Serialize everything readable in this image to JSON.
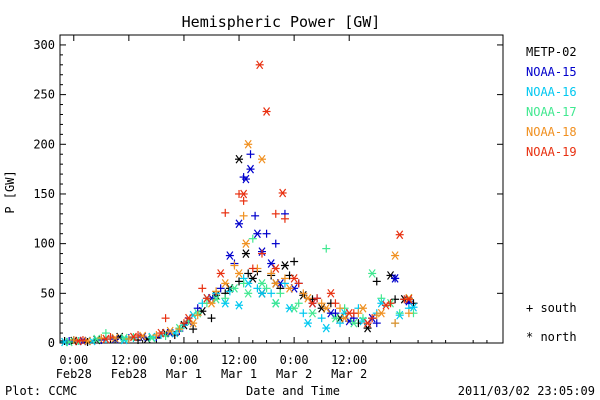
{
  "chart_data": {
    "type": "scatter",
    "title": "Hemispheric Power [GW]",
    "xlabel": "Date and Time",
    "ylabel": "P [GW]",
    "ylim": [
      0,
      310
    ],
    "x_unit": "hours",
    "xlim": [
      -3,
      93.5
    ],
    "x_ticks": [
      {
        "x": 0,
        "line1": "0:00",
        "line2": "Feb28"
      },
      {
        "x": 12,
        "line1": "12:00",
        "line2": "Feb28"
      },
      {
        "x": 24,
        "line1": "0:00",
        "line2": "Mar 1"
      },
      {
        "x": 36,
        "line1": "12:00",
        "line2": "Mar 1"
      },
      {
        "x": 48,
        "line1": "0:00",
        "line2": "Mar 2"
      },
      {
        "x": 60,
        "line1": "12:00",
        "line2": "Mar 2"
      }
    ],
    "y_ticks": [
      0,
      50,
      100,
      150,
      200,
      250,
      300
    ],
    "legend_position": "right",
    "marker_legend": [
      {
        "symbol": "+",
        "label": "south"
      },
      {
        "symbol": "*",
        "label": "north"
      }
    ],
    "series": [
      {
        "name": "METP-02",
        "color": "#000000",
        "south": [
          [
            -2,
            2
          ],
          [
            3,
            1
          ],
          [
            8,
            4
          ],
          [
            14,
            3
          ],
          [
            18,
            5
          ],
          [
            22,
            8
          ],
          [
            26,
            14
          ],
          [
            30,
            25
          ],
          [
            33,
            50
          ],
          [
            36,
            62
          ],
          [
            38,
            70
          ],
          [
            40,
            72
          ],
          [
            43,
            68
          ],
          [
            45,
            55
          ],
          [
            47,
            68
          ],
          [
            48,
            82
          ],
          [
            52,
            44
          ],
          [
            56,
            40
          ],
          [
            62,
            20
          ],
          [
            66,
            62
          ],
          [
            70,
            44
          ],
          [
            74,
            40
          ]
        ],
        "north": [
          [
            0,
            2
          ],
          [
            5,
            3
          ],
          [
            10,
            6
          ],
          [
            16,
            4
          ],
          [
            20,
            10
          ],
          [
            24,
            18
          ],
          [
            28,
            32
          ],
          [
            31,
            48
          ],
          [
            34,
            55
          ],
          [
            36,
            185
          ],
          [
            37.5,
            90
          ],
          [
            39,
            65
          ],
          [
            41,
            50
          ],
          [
            44,
            60
          ],
          [
            46,
            78
          ],
          [
            50,
            48
          ],
          [
            54,
            35
          ],
          [
            58,
            25
          ],
          [
            64,
            15
          ],
          [
            69,
            68
          ],
          [
            72,
            44
          ]
        ]
      },
      {
        "name": "NOAA-15",
        "color": "#0000cc",
        "south": [
          [
            -1,
            2
          ],
          [
            6,
            3
          ],
          [
            12,
            5
          ],
          [
            18,
            6
          ],
          [
            23,
            12
          ],
          [
            27,
            35
          ],
          [
            32,
            55
          ],
          [
            35,
            80
          ],
          [
            37,
            167
          ],
          [
            38.5,
            190
          ],
          [
            39.5,
            128
          ],
          [
            42,
            110
          ],
          [
            44,
            100
          ],
          [
            46,
            130
          ],
          [
            49,
            60
          ],
          [
            53,
            45
          ],
          [
            57,
            30
          ],
          [
            61,
            25
          ],
          [
            66,
            20
          ],
          [
            70,
            65
          ],
          [
            73,
            40
          ]
        ],
        "north": [
          [
            2,
            2
          ],
          [
            9,
            4
          ],
          [
            15,
            6
          ],
          [
            21,
            10
          ],
          [
            25,
            22
          ],
          [
            30,
            45
          ],
          [
            34,
            88
          ],
          [
            36,
            120
          ],
          [
            37.5,
            165
          ],
          [
            38.5,
            175
          ],
          [
            40,
            110
          ],
          [
            41,
            92
          ],
          [
            43,
            80
          ],
          [
            45,
            60
          ],
          [
            48,
            55
          ],
          [
            52,
            40
          ],
          [
            56,
            30
          ],
          [
            60,
            22
          ],
          [
            65,
            25
          ],
          [
            70,
            65
          ],
          [
            73,
            42
          ]
        ]
      },
      {
        "name": "NOAA-16",
        "color": "#00c8f0",
        "south": [
          [
            0,
            3
          ],
          [
            7,
            4
          ],
          [
            13,
            5
          ],
          [
            19,
            8
          ],
          [
            24,
            18
          ],
          [
            28,
            40
          ],
          [
            31,
            50
          ],
          [
            34,
            52
          ],
          [
            37,
            65
          ],
          [
            40,
            55
          ],
          [
            43,
            50
          ],
          [
            46,
            60
          ],
          [
            50,
            30
          ],
          [
            54,
            25
          ],
          [
            58,
            20
          ],
          [
            62,
            35
          ],
          [
            66,
            30
          ],
          [
            70,
            20
          ],
          [
            73,
            35
          ]
        ],
        "north": [
          [
            -2,
            1
          ],
          [
            4,
            2
          ],
          [
            11,
            3
          ],
          [
            17,
            6
          ],
          [
            22,
            10
          ],
          [
            26,
            28
          ],
          [
            29,
            45
          ],
          [
            33,
            40
          ],
          [
            36,
            38
          ],
          [
            38,
            60
          ],
          [
            41,
            50
          ],
          [
            44,
            40
          ],
          [
            47,
            35
          ],
          [
            51,
            20
          ],
          [
            55,
            15
          ],
          [
            59,
            30
          ],
          [
            63,
            22
          ],
          [
            67,
            40
          ],
          [
            71,
            28
          ],
          [
            74,
            36
          ]
        ]
      },
      {
        "name": "NOAA-17",
        "color": "#40e890",
        "south": [
          [
            1,
            2
          ],
          [
            7,
            10
          ],
          [
            13,
            6
          ],
          [
            20,
            7
          ],
          [
            25,
            22
          ],
          [
            29,
            40
          ],
          [
            33,
            45
          ],
          [
            37,
            60
          ],
          [
            39,
            105
          ],
          [
            42,
            55
          ],
          [
            45,
            50
          ],
          [
            49,
            40
          ],
          [
            55,
            95
          ],
          [
            59,
            35
          ],
          [
            63,
            25
          ],
          [
            67,
            45
          ],
          [
            71,
            30
          ],
          [
            74,
            30
          ]
        ],
        "north": [
          [
            -1,
            1
          ],
          [
            5,
            4
          ],
          [
            11,
            5
          ],
          [
            17,
            5
          ],
          [
            23,
            15
          ],
          [
            27,
            30
          ],
          [
            31,
            44
          ],
          [
            35,
            55
          ],
          [
            38,
            50
          ],
          [
            41,
            60
          ],
          [
            44,
            40
          ],
          [
            48,
            35
          ],
          [
            52,
            30
          ],
          [
            57,
            25
          ],
          [
            61,
            20
          ],
          [
            65,
            70
          ],
          [
            69,
            40
          ],
          [
            73,
            45
          ]
        ]
      },
      {
        "name": "NOAA-18",
        "color": "#f09020",
        "south": [
          [
            0,
            3
          ],
          [
            6,
            5
          ],
          [
            12,
            4
          ],
          [
            18,
            8
          ],
          [
            23,
            14
          ],
          [
            27,
            28
          ],
          [
            31,
            52
          ],
          [
            35,
            78
          ],
          [
            37,
            128
          ],
          [
            40,
            75
          ],
          [
            43,
            70
          ],
          [
            46,
            65
          ],
          [
            50,
            50
          ],
          [
            54,
            40
          ],
          [
            58,
            35
          ],
          [
            62,
            30
          ],
          [
            66,
            28
          ],
          [
            70,
            20
          ],
          [
            73,
            30
          ]
        ],
        "north": [
          [
            3,
            2
          ],
          [
            9,
            5
          ],
          [
            15,
            7
          ],
          [
            21,
            12
          ],
          [
            26,
            20
          ],
          [
            30,
            40
          ],
          [
            33,
            60
          ],
          [
            36,
            70
          ],
          [
            37.5,
            100
          ],
          [
            38,
            200
          ],
          [
            41,
            185
          ],
          [
            44,
            60
          ],
          [
            47,
            55
          ],
          [
            51,
            45
          ],
          [
            55,
            35
          ],
          [
            59,
            25
          ],
          [
            63,
            35
          ],
          [
            67,
            30
          ],
          [
            70,
            88
          ],
          [
            73,
            45
          ]
        ]
      },
      {
        "name": "NOAA-19",
        "color": "#e83010",
        "south": [
          [
            2,
            3
          ],
          [
            8,
            6
          ],
          [
            14,
            8
          ],
          [
            20,
            25
          ],
          [
            24,
            20
          ],
          [
            28,
            55
          ],
          [
            33,
            131
          ],
          [
            36,
            150
          ],
          [
            37,
            143
          ],
          [
            39,
            75
          ],
          [
            41,
            90
          ],
          [
            44,
            130
          ],
          [
            46,
            125
          ],
          [
            49,
            60
          ],
          [
            53,
            45
          ],
          [
            57,
            40
          ],
          [
            61,
            30
          ],
          [
            65,
            25
          ],
          [
            69,
            40
          ],
          [
            72,
            44
          ]
        ],
        "north": [
          [
            1,
            2
          ],
          [
            7,
            4
          ],
          [
            13,
            6
          ],
          [
            19,
            10
          ],
          [
            25,
            25
          ],
          [
            29,
            45
          ],
          [
            32,
            70
          ],
          [
            37,
            150
          ],
          [
            40.5,
            280
          ],
          [
            42,
            233
          ],
          [
            44,
            75
          ],
          [
            45.5,
            151
          ],
          [
            48,
            65
          ],
          [
            52,
            40
          ],
          [
            56,
            50
          ],
          [
            60,
            30
          ],
          [
            64,
            20
          ],
          [
            68,
            38
          ],
          [
            71,
            109
          ],
          [
            73,
            44
          ]
        ]
      }
    ],
    "footer": {
      "left": "Plot: CCMC",
      "right": "2011/03/02 23:05:09"
    }
  }
}
